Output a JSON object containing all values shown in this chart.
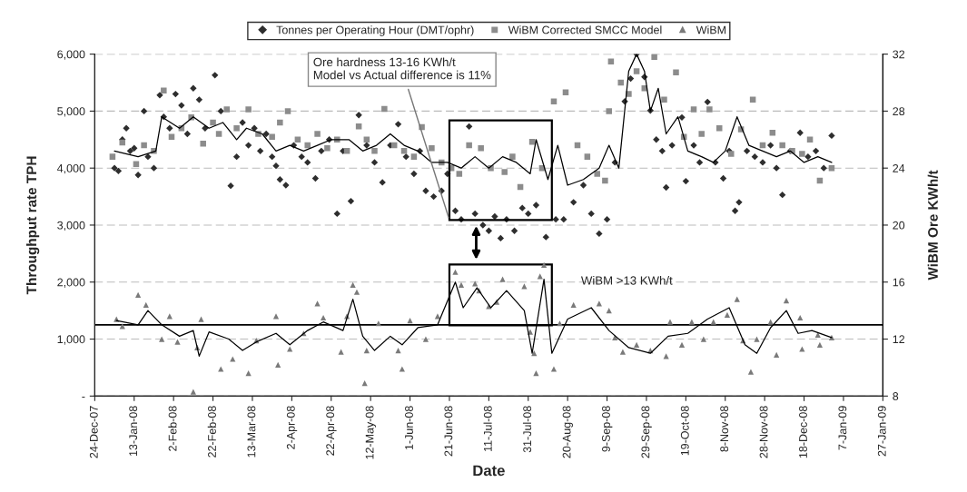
{
  "chart_data": {
    "type": "scatter",
    "xlabel": "Date",
    "ylabel": "Throughput rate TPH",
    "y2label": "WiBM Ore KWh/t",
    "annotations": [
      "Ore hardness 13-16 KWh/t\nModel vs Actual difference is 11%",
      "WiBM >13 KWh/t"
    ],
    "xlim": [
      "2007-12-24",
      "2009-01-27"
    ],
    "xticks": [
      {
        "value": "2007-12-24",
        "label": "24-Dec-07"
      },
      {
        "value": "2008-01-13",
        "label": "13-Jan-08"
      },
      {
        "value": "2008-02-02",
        "label": "2-Feb-08"
      },
      {
        "value": "2008-02-22",
        "label": "22-Feb-08"
      },
      {
        "value": "2008-03-13",
        "label": "13-Mar-08"
      },
      {
        "value": "2008-04-02",
        "label": "2-Apr-08"
      },
      {
        "value": "2008-04-22",
        "label": "22-Apr-08"
      },
      {
        "value": "2008-05-12",
        "label": "12-May-08"
      },
      {
        "value": "2008-06-01",
        "label": "1-Jun-08"
      },
      {
        "value": "2008-06-21",
        "label": "21-Jun-08"
      },
      {
        "value": "2008-07-11",
        "label": "11-Jul-08"
      },
      {
        "value": "2008-07-31",
        "label": "31-Jul-08"
      },
      {
        "value": "2008-08-20",
        "label": "20-Aug-08"
      },
      {
        "value": "2008-09-09",
        "label": "9-Sep-08"
      },
      {
        "value": "2008-09-29",
        "label": "29-Sep-08"
      },
      {
        "value": "2008-10-19",
        "label": "19-Oct-08"
      },
      {
        "value": "2008-11-08",
        "label": "8-Nov-08"
      },
      {
        "value": "2008-11-28",
        "label": "28-Nov-08"
      },
      {
        "value": "2008-12-18",
        "label": "18-Dec-08"
      },
      {
        "value": "2009-01-07",
        "label": "7-Jan-09"
      },
      {
        "value": "2009-01-27",
        "label": "27-Jan-09"
      }
    ],
    "ylim": [
      0,
      6000
    ],
    "yticks": [
      {
        "value": 0,
        "label": "-"
      },
      {
        "value": 1000,
        "label": "1,000"
      },
      {
        "value": 2000,
        "label": "2,000"
      },
      {
        "value": 3000,
        "label": "3,000"
      },
      {
        "value": 4000,
        "label": "4,000"
      },
      {
        "value": 5000,
        "label": "5,000"
      },
      {
        "value": 6000,
        "label": "6,000"
      }
    ],
    "y2lim": [
      8,
      32
    ],
    "y2ticks": [
      8,
      12,
      16,
      20,
      24,
      28,
      32
    ],
    "grid": "y",
    "legend": "top",
    "ref_lines": [
      {
        "axis": "y2",
        "value": 13,
        "color": "#000000"
      }
    ],
    "series": [
      {
        "name": "Tonnes per Operating Hour (DMT/ophr)",
        "type": "scatter",
        "marker": "diamond",
        "color": "#2e2e2e",
        "x": [
          "2008-01-03",
          "2008-01-05",
          "2008-01-07",
          "2008-01-09",
          "2008-01-11",
          "2008-01-13",
          "2008-01-15",
          "2008-01-18",
          "2008-01-20",
          "2008-01-23",
          "2008-01-26",
          "2008-01-28",
          "2008-01-31",
          "2008-02-03",
          "2008-02-06",
          "2008-02-09",
          "2008-02-12",
          "2008-02-15",
          "2008-02-18",
          "2008-02-23",
          "2008-02-26",
          "2008-03-02",
          "2008-03-05",
          "2008-03-08",
          "2008-03-11",
          "2008-03-14",
          "2008-03-17",
          "2008-03-20",
          "2008-03-23",
          "2008-03-25",
          "2008-03-27",
          "2008-03-30",
          "2008-04-03",
          "2008-04-07",
          "2008-04-10",
          "2008-04-14",
          "2008-04-17",
          "2008-04-21",
          "2008-04-25",
          "2008-04-28",
          "2008-05-02",
          "2008-05-06",
          "2008-05-10",
          "2008-05-14",
          "2008-05-18",
          "2008-05-22",
          "2008-05-26",
          "2008-05-30",
          "2008-06-03",
          "2008-06-06",
          "2008-06-09",
          "2008-06-13",
          "2008-06-17",
          "2008-06-20",
          "2008-06-24",
          "2008-06-27",
          "2008-07-01",
          "2008-07-04",
          "2008-07-08",
          "2008-07-11",
          "2008-07-14",
          "2008-07-17",
          "2008-07-20",
          "2008-07-24",
          "2008-07-28",
          "2008-07-31",
          "2008-08-04",
          "2008-08-09",
          "2008-08-14",
          "2008-08-18",
          "2008-08-23",
          "2008-08-28",
          "2008-09-01",
          "2008-09-05",
          "2008-09-09",
          "2008-09-13",
          "2008-09-18",
          "2008-09-21",
          "2008-09-24",
          "2008-09-28",
          "2008-10-01",
          "2008-10-04",
          "2008-10-07",
          "2008-10-09",
          "2008-10-12",
          "2008-10-17",
          "2008-10-19",
          "2008-10-23",
          "2008-10-26",
          "2008-10-30",
          "2008-11-03",
          "2008-11-07",
          "2008-11-10",
          "2008-11-13",
          "2008-11-15",
          "2008-11-19",
          "2008-11-23",
          "2008-11-27",
          "2008-12-01",
          "2008-12-04",
          "2008-12-07",
          "2008-12-11",
          "2008-12-16",
          "2008-12-20",
          "2008-12-24",
          "2008-12-28",
          "2009-01-01"
        ],
        "values": [
          4000,
          3950,
          4500,
          4700,
          4300,
          4350,
          3880,
          5000,
          4200,
          4000,
          5280,
          4900,
          4700,
          5300,
          5100,
          4600,
          5400,
          5200,
          4700,
          5630,
          5000,
          3690,
          4200,
          4800,
          4400,
          4700,
          4300,
          4600,
          4200,
          4040,
          3800,
          3700,
          4400,
          4200,
          4100,
          3820,
          4300,
          4500,
          3200,
          4300,
          3420,
          4930,
          4400,
          4100,
          3750,
          4400,
          4770,
          4200,
          3900,
          4300,
          3600,
          3500,
          3600,
          3900,
          3250,
          3100,
          4730,
          3200,
          3000,
          2900,
          3150,
          2770,
          3100,
          2900,
          3300,
          3200,
          3350,
          2790,
          3100,
          3100,
          3400,
          3700,
          3200,
          2850,
          3100,
          4100,
          5170,
          5570,
          6000,
          5600,
          5010,
          4500,
          4300,
          3660,
          4400,
          4890,
          3770,
          4400,
          4100,
          5160,
          4100,
          3820,
          4300,
          3250,
          3400,
          4300,
          4200,
          4100,
          4400,
          4000,
          3530,
          4300,
          4620,
          4200,
          4300,
          4000,
          4570
        ]
      },
      {
        "name": "WiBM Corrected SMCC Model",
        "type": "scatter",
        "marker": "square",
        "color": "#8c8c8c",
        "x": [
          "2008-01-02",
          "2008-01-07",
          "2008-01-14",
          "2008-01-18",
          "2008-01-23",
          "2008-01-28",
          "2008-02-01",
          "2008-02-06",
          "2008-02-11",
          "2008-02-17",
          "2008-02-22",
          "2008-02-25",
          "2008-02-29",
          "2008-03-05",
          "2008-03-11",
          "2008-03-16",
          "2008-03-23",
          "2008-03-27",
          "2008-03-31",
          "2008-04-05",
          "2008-04-10",
          "2008-04-15",
          "2008-04-20",
          "2008-04-25",
          "2008-04-30",
          "2008-05-06",
          "2008-05-10",
          "2008-05-14",
          "2008-05-19",
          "2008-05-24",
          "2008-05-29",
          "2008-06-03",
          "2008-06-07",
          "2008-06-12",
          "2008-06-17",
          "2008-06-22",
          "2008-06-26",
          "2008-07-01",
          "2008-07-07",
          "2008-07-12",
          "2008-07-19",
          "2008-07-23",
          "2008-07-27",
          "2008-08-02",
          "2008-08-07",
          "2008-08-13",
          "2008-08-19",
          "2008-08-25",
          "2008-08-30",
          "2008-09-04",
          "2008-09-08",
          "2008-09-10",
          "2008-09-11",
          "2008-09-16",
          "2008-09-20",
          "2008-09-24",
          "2008-09-28",
          "2008-10-03",
          "2008-10-08",
          "2008-10-14",
          "2008-10-18",
          "2008-10-23",
          "2008-10-27",
          "2008-10-31",
          "2008-11-05",
          "2008-11-11",
          "2008-11-16",
          "2008-11-22",
          "2008-11-27",
          "2008-12-02",
          "2008-12-07",
          "2008-12-12",
          "2008-12-17",
          "2008-12-21",
          "2008-12-26",
          "2009-01-01"
        ],
        "values": [
          4200,
          4450,
          4070,
          4400,
          4300,
          5360,
          4550,
          4700,
          4890,
          4430,
          4800,
          4600,
          5030,
          4700,
          5030,
          4600,
          4550,
          4800,
          5000,
          4500,
          4400,
          4600,
          4350,
          4500,
          4300,
          4730,
          4500,
          4300,
          5040,
          4400,
          4300,
          4200,
          4720,
          4350,
          4100,
          4000,
          3900,
          4400,
          4350,
          4000,
          3930,
          4200,
          3670,
          4460,
          4000,
          5170,
          5330,
          4400,
          4200,
          3900,
          3780,
          5000,
          5870,
          5500,
          5300,
          5700,
          5400,
          5950,
          5200,
          5680,
          4550,
          5030,
          4600,
          5030,
          4700,
          4250,
          4680,
          5200,
          4400,
          4620,
          4400,
          4300,
          4250,
          4500,
          3780,
          4000
        ]
      },
      {
        "name": "WiBM",
        "type": "scatter",
        "marker": "triangle",
        "color": "#7a7a7a",
        "axis": "y2",
        "x": [
          "2008-01-04",
          "2008-01-07",
          "2008-01-15",
          "2008-01-19",
          "2008-01-27",
          "2008-01-31",
          "2008-02-04",
          "2008-02-12",
          "2008-02-14",
          "2008-02-16",
          "2008-02-26",
          "2008-03-03",
          "2008-03-11",
          "2008-03-15",
          "2008-03-25",
          "2008-03-26",
          "2008-04-01",
          "2008-04-08",
          "2008-04-15",
          "2008-04-18",
          "2008-04-27",
          "2008-04-30",
          "2008-05-03",
          "2008-05-05",
          "2008-05-09",
          "2008-05-10",
          "2008-05-16",
          "2008-05-26",
          "2008-05-28",
          "2008-06-01",
          "2008-06-09",
          "2008-06-15",
          "2008-06-24",
          "2008-06-27",
          "2008-07-04",
          "2008-07-06",
          "2008-07-11",
          "2008-07-15",
          "2008-07-18",
          "2008-07-29",
          "2008-08-01",
          "2008-08-03",
          "2008-08-04",
          "2008-08-06",
          "2008-08-08",
          "2008-08-13",
          "2008-08-16",
          "2008-08-23",
          "2008-09-05",
          "2008-09-10",
          "2008-09-13",
          "2008-09-17",
          "2008-09-24",
          "2008-10-01",
          "2008-10-09",
          "2008-10-11",
          "2008-10-17",
          "2008-10-22",
          "2008-10-28",
          "2008-11-02",
          "2008-11-09",
          "2008-11-14",
          "2008-11-17",
          "2008-11-21",
          "2008-11-24",
          "2008-12-01",
          "2008-12-04",
          "2008-12-09",
          "2008-12-16",
          "2008-12-17",
          "2008-12-25",
          "2008-12-26",
          "2009-01-01"
        ],
        "values": [
          13.4,
          12.9,
          15.1,
          14.4,
          12.0,
          13.6,
          11.8,
          8.3,
          11.4,
          13.4,
          9.9,
          10.6,
          9.6,
          11.9,
          13.6,
          10.2,
          11.3,
          12.4,
          14.5,
          13.5,
          11.1,
          13.6,
          15.8,
          15.3,
          8.9,
          11.2,
          13.1,
          11.2,
          9.9,
          13.3,
          12.0,
          13.6,
          16.7,
          15.8,
          15.9,
          15.4,
          14.3,
          14.6,
          16.2,
          15.7,
          12.5,
          11.0,
          9.6,
          16.4,
          17.2,
          9.9,
          13.1,
          14.4,
          14.5,
          14.0,
          12.1,
          11.1,
          11.6,
          11.2,
          10.8,
          13.2,
          11.6,
          13.2,
          12.0,
          13.2,
          13.7,
          14.8,
          11.9,
          9.7,
          12.0,
          13.2,
          10.9,
          14.7,
          13.5,
          11.3,
          12.3,
          11.6,
          12.1
        ]
      },
      {
        "type": "line",
        "marker": "none",
        "color": "#000000",
        "x": [
          "2008-01-03",
          "2008-01-15",
          "2008-01-24",
          "2008-01-27",
          "2008-02-05",
          "2008-02-12",
          "2008-02-20",
          "2008-02-27",
          "2008-03-05",
          "2008-03-10",
          "2008-03-18",
          "2008-03-25",
          "2008-04-01",
          "2008-04-08",
          "2008-04-15",
          "2008-04-22",
          "2008-05-01",
          "2008-05-08",
          "2008-05-15",
          "2008-05-22",
          "2008-05-29",
          "2008-06-05",
          "2008-06-12",
          "2008-06-20",
          "2008-06-27",
          "2008-07-04",
          "2008-07-11",
          "2008-07-18",
          "2008-07-25",
          "2008-08-01",
          "2008-08-04",
          "2008-08-10",
          "2008-08-15",
          "2008-08-20",
          "2008-08-28",
          "2008-09-05",
          "2008-09-10",
          "2008-09-15",
          "2008-09-20",
          "2008-09-24",
          "2008-09-28",
          "2008-10-01",
          "2008-10-05",
          "2008-10-09",
          "2008-10-15",
          "2008-10-20",
          "2008-10-27",
          "2008-11-02",
          "2008-11-08",
          "2008-11-14",
          "2008-11-20",
          "2008-11-27",
          "2008-12-04",
          "2008-12-11",
          "2008-12-18",
          "2008-12-25",
          "2009-01-01"
        ],
        "values": [
          4300,
          4200,
          4300,
          4900,
          4700,
          4900,
          4700,
          4800,
          4500,
          4700,
          4600,
          4300,
          4400,
          4300,
          4400,
          4500,
          4500,
          4300,
          4400,
          4600,
          4400,
          4300,
          4100,
          4100,
          4000,
          4200,
          4000,
          4200,
          4100,
          3900,
          4500,
          3800,
          4400,
          3700,
          3800,
          4000,
          4400,
          4000,
          5700,
          6000,
          5700,
          5000,
          5400,
          4600,
          4900,
          4300,
          4200,
          4100,
          4300,
          4900,
          4400,
          4300,
          4200,
          4300,
          4100,
          4200,
          4100
        ]
      },
      {
        "type": "line",
        "marker": "none",
        "color": "#000000",
        "axis": "y2",
        "x": [
          "2008-01-04",
          "2008-01-15",
          "2008-01-20",
          "2008-01-27",
          "2008-02-05",
          "2008-02-12",
          "2008-02-15",
          "2008-02-20",
          "2008-03-01",
          "2008-03-08",
          "2008-03-15",
          "2008-03-25",
          "2008-04-01",
          "2008-04-10",
          "2008-04-18",
          "2008-04-28",
          "2008-05-03",
          "2008-05-08",
          "2008-05-14",
          "2008-05-22",
          "2008-05-28",
          "2008-06-05",
          "2008-06-15",
          "2008-06-24",
          "2008-06-28",
          "2008-07-05",
          "2008-07-12",
          "2008-07-20",
          "2008-07-29",
          "2008-08-02",
          "2008-08-08",
          "2008-08-12",
          "2008-08-20",
          "2008-09-01",
          "2008-09-10",
          "2008-09-20",
          "2008-10-01",
          "2008-10-10",
          "2008-10-20",
          "2008-10-30",
          "2008-11-10",
          "2008-11-18",
          "2008-11-24",
          "2008-12-01",
          "2008-12-09",
          "2008-12-15",
          "2008-12-22",
          "2009-01-01"
        ],
        "values": [
          13.3,
          13.0,
          14.0,
          13.0,
          12.2,
          12.6,
          10.8,
          12.5,
          12.0,
          11.2,
          11.8,
          12.4,
          11.6,
          12.6,
          13.2,
          12.6,
          14.8,
          12.2,
          11.2,
          12.2,
          11.6,
          12.8,
          13.0,
          16.0,
          14.2,
          15.6,
          14.2,
          15.4,
          14.0,
          11.0,
          16.2,
          11.0,
          13.4,
          14.2,
          12.6,
          11.4,
          11.0,
          12.2,
          12.4,
          13.4,
          14.2,
          11.6,
          11.0,
          12.8,
          14.0,
          12.4,
          12.6,
          12.1
        ]
      }
    ]
  }
}
